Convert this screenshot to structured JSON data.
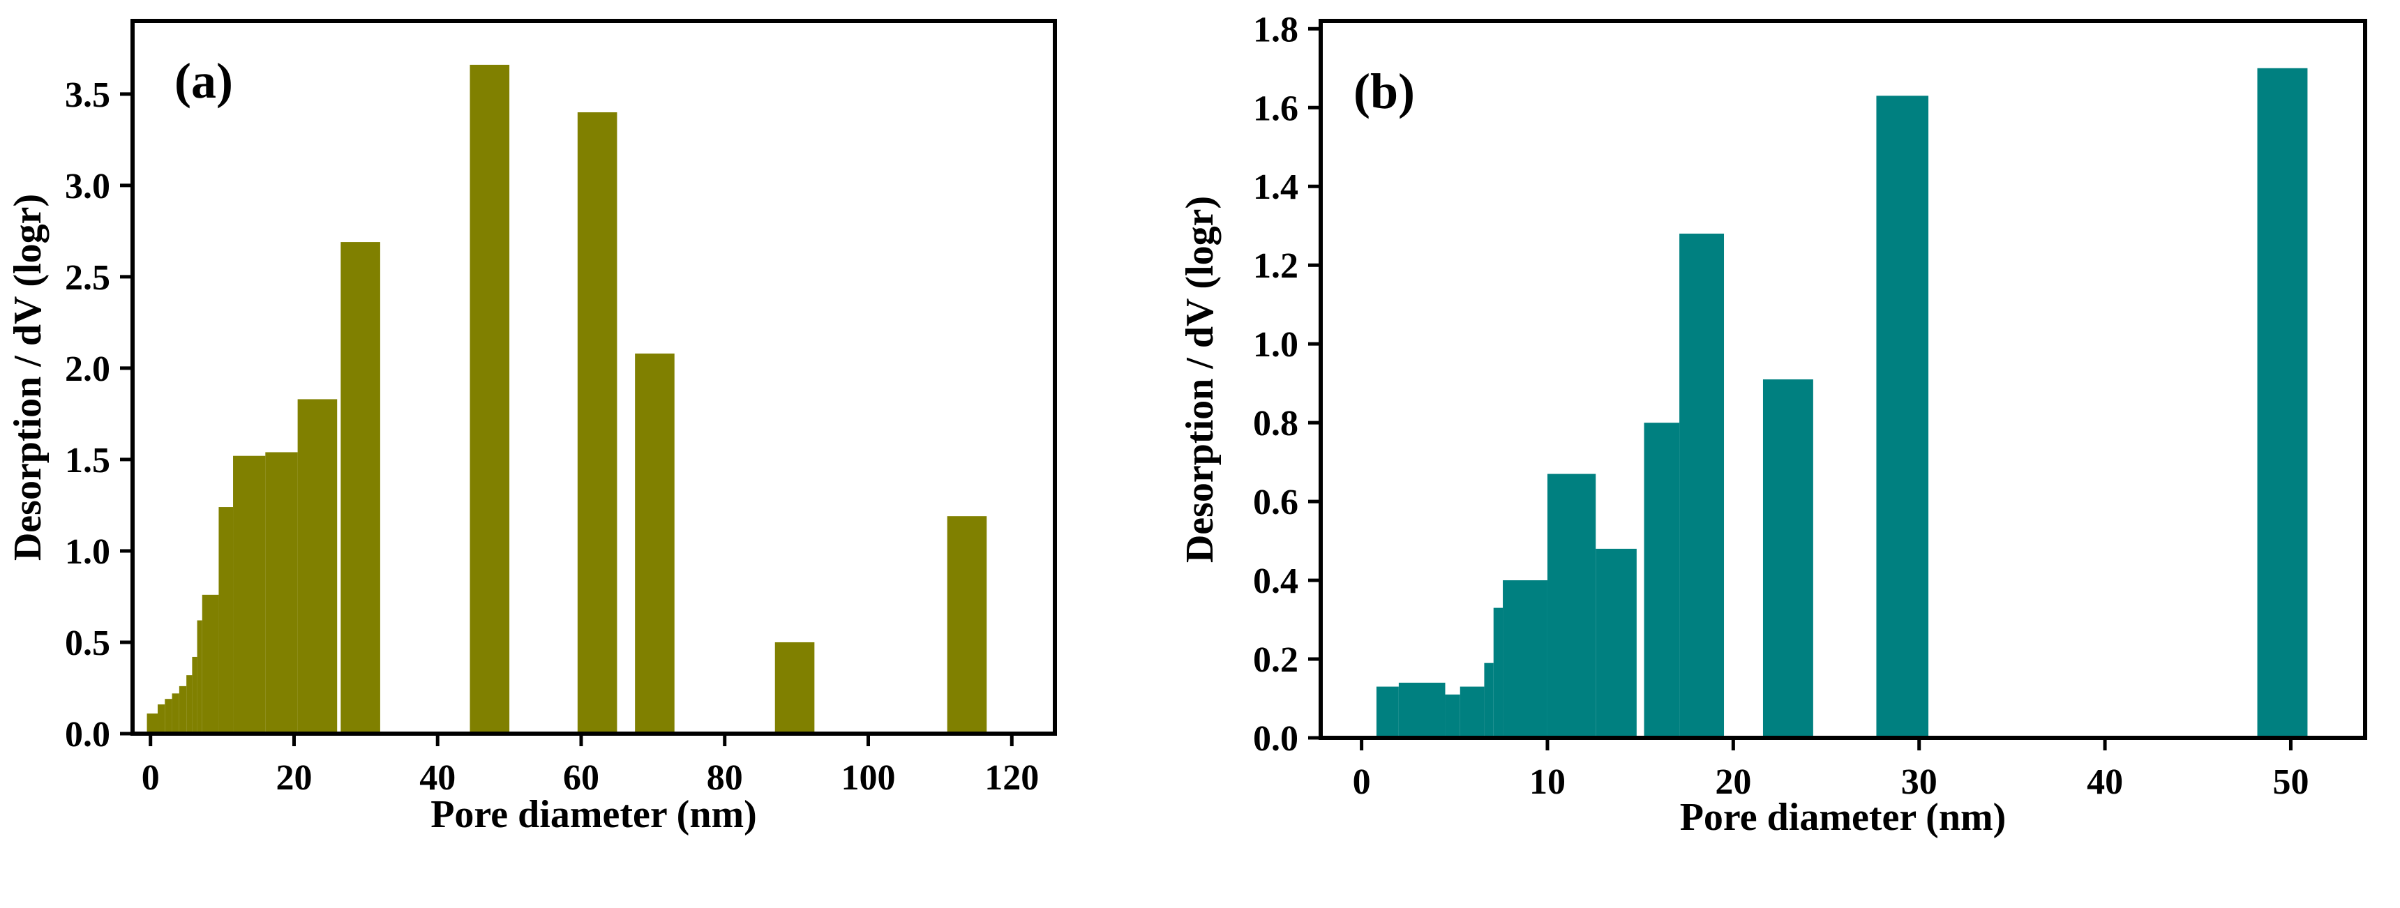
{
  "chart_data": [
    {
      "type": "bar",
      "panel_label": "(a)",
      "xlabel": "Pore diameter (nm)",
      "ylabel": "Desorption / dV (logr)",
      "xlim": [
        -2.5,
        126
      ],
      "ylim": [
        0,
        3.9
      ],
      "xticks": [
        "0",
        "20",
        "40",
        "60",
        "80",
        "100",
        "120"
      ],
      "xtick_values": [
        0,
        20,
        40,
        60,
        80,
        100,
        120
      ],
      "yticks": [
        "0.0",
        "0.5",
        "1.0",
        "1.5",
        "2.0",
        "2.5",
        "3.0",
        "3.5"
      ],
      "ytick_values": [
        0,
        0.5,
        1.0,
        1.5,
        2.0,
        2.5,
        3.0,
        3.5
      ],
      "bar_color": "#808000",
      "bars": [
        {
          "x0": -0.5,
          "x1": 1.0,
          "value": 0.11
        },
        {
          "x0": 1.0,
          "x1": 2.0,
          "value": 0.16
        },
        {
          "x0": 2.0,
          "x1": 3.0,
          "value": 0.19
        },
        {
          "x0": 3.0,
          "x1": 4.0,
          "value": 0.22
        },
        {
          "x0": 4.0,
          "x1": 5.0,
          "value": 0.26
        },
        {
          "x0": 5.0,
          "x1": 5.8,
          "value": 0.32
        },
        {
          "x0": 5.8,
          "x1": 6.5,
          "value": 0.42
        },
        {
          "x0": 6.5,
          "x1": 7.2,
          "value": 0.62
        },
        {
          "x0": 7.2,
          "x1": 9.5,
          "value": 0.76
        },
        {
          "x0": 9.5,
          "x1": 11.5,
          "value": 1.24
        },
        {
          "x0": 11.5,
          "x1": 16.0,
          "value": 1.52
        },
        {
          "x0": 16.0,
          "x1": 20.5,
          "value": 1.54
        },
        {
          "x0": 20.5,
          "x1": 26.0,
          "value": 1.83
        },
        {
          "x0": 26.5,
          "x1": 32.0,
          "value": 2.69
        },
        {
          "x0": 44.5,
          "x1": 50.0,
          "value": 3.66
        },
        {
          "x0": 59.5,
          "x1": 65.0,
          "value": 3.4
        },
        {
          "x0": 67.5,
          "x1": 73.0,
          "value": 2.08
        },
        {
          "x0": 87.0,
          "x1": 92.5,
          "value": 0.5
        },
        {
          "x0": 111.0,
          "x1": 116.5,
          "value": 1.19
        }
      ]
    },
    {
      "type": "bar",
      "panel_label": "(b)",
      "xlabel": "Pore diameter (nm)",
      "ylabel": "Desorption / dV (logr)",
      "xlim": [
        -2.2,
        54
      ],
      "ylim": [
        0,
        1.82
      ],
      "xticks": [
        "0",
        "10",
        "20",
        "30",
        "40",
        "50"
      ],
      "xtick_values": [
        0,
        10,
        20,
        30,
        40,
        50
      ],
      "yticks": [
        "0.0",
        "0.2",
        "0.4",
        "0.6",
        "0.8",
        "1.0",
        "1.2",
        "1.4",
        "1.6",
        "1.8"
      ],
      "ytick_values": [
        0,
        0.2,
        0.4,
        0.6,
        0.8,
        1.0,
        1.2,
        1.4,
        1.6,
        1.8
      ],
      "bar_color": "#008080",
      "bars": [
        {
          "x0": 0.8,
          "x1": 2.0,
          "value": 0.13
        },
        {
          "x0": 2.0,
          "x1": 4.5,
          "value": 0.14
        },
        {
          "x0": 4.5,
          "x1": 5.3,
          "value": 0.11
        },
        {
          "x0": 5.3,
          "x1": 6.6,
          "value": 0.13
        },
        {
          "x0": 6.6,
          "x1": 7.1,
          "value": 0.19
        },
        {
          "x0": 7.1,
          "x1": 7.6,
          "value": 0.33
        },
        {
          "x0": 7.6,
          "x1": 10.0,
          "value": 0.4
        },
        {
          "x0": 10.0,
          "x1": 12.6,
          "value": 0.67
        },
        {
          "x0": 12.6,
          "x1": 14.8,
          "value": 0.48
        },
        {
          "x0": 15.2,
          "x1": 17.1,
          "value": 0.8
        },
        {
          "x0": 17.1,
          "x1": 19.5,
          "value": 1.28
        },
        {
          "x0": 21.6,
          "x1": 24.3,
          "value": 0.91
        },
        {
          "x0": 27.7,
          "x1": 30.5,
          "value": 1.63
        },
        {
          "x0": 48.2,
          "x1": 50.9,
          "value": 1.7
        }
      ]
    }
  ]
}
